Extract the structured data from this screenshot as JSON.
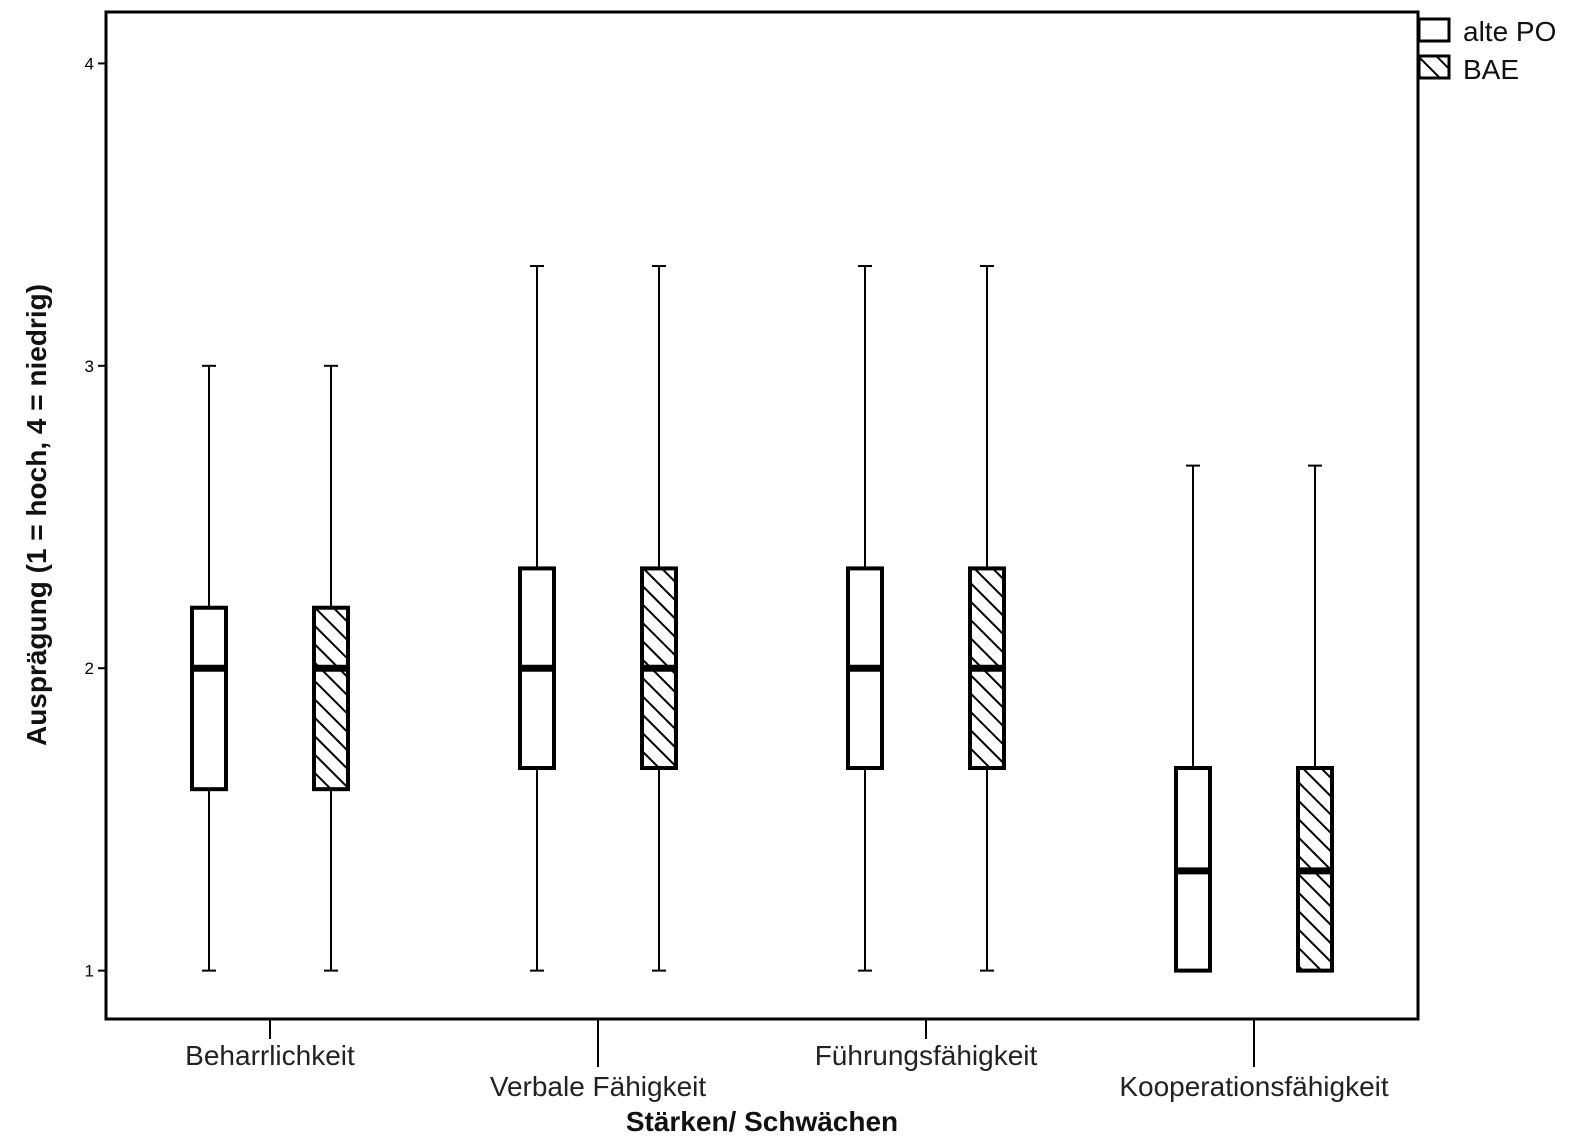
{
  "chart_data": {
    "type": "boxplot",
    "xlabel": "Stärken/ Schwächen",
    "ylabel": "Ausprägung (1 = hoch, 4 = niedrig)",
    "ylim": [
      0.84,
      4.17
    ],
    "yticks": [
      1,
      2,
      3,
      4
    ],
    "categories": [
      "Beharrlichkeit",
      "Verbale Fähigkeit",
      "Führungsfähigkeit",
      "Kooperationsfähigkeit"
    ],
    "series": [
      {
        "name": "alte PO",
        "pattern": "none",
        "boxes": [
          {
            "min": 1.0,
            "q1": 1.6,
            "median": 2.0,
            "q3": 2.2,
            "max": 3.0
          },
          {
            "min": 1.0,
            "q1": 1.67,
            "median": 2.0,
            "q3": 2.33,
            "max": 3.33
          },
          {
            "min": 1.0,
            "q1": 1.67,
            "median": 2.0,
            "q3": 2.33,
            "max": 3.33
          },
          {
            "min": 1.0,
            "q1": 1.0,
            "median": 1.33,
            "q3": 1.67,
            "max": 2.67
          }
        ]
      },
      {
        "name": "BAE",
        "pattern": "diagonal-hatch",
        "boxes": [
          {
            "min": 1.0,
            "q1": 1.6,
            "median": 2.0,
            "q3": 2.2,
            "max": 3.0
          },
          {
            "min": 1.0,
            "q1": 1.67,
            "median": 2.0,
            "q3": 2.33,
            "max": 3.33
          },
          {
            "min": 1.0,
            "q1": 1.67,
            "median": 2.0,
            "q3": 2.33,
            "max": 3.33
          },
          {
            "min": 1.0,
            "q1": 1.0,
            "median": 1.33,
            "q3": 1.67,
            "max": 2.67
          }
        ]
      }
    ],
    "legend": {
      "placement": "top-right, outside plot",
      "entries": [
        "alte PO",
        "BAE"
      ]
    },
    "grid": false,
    "colors": {
      "stroke": "#000000",
      "fill": "#ffffff"
    }
  }
}
